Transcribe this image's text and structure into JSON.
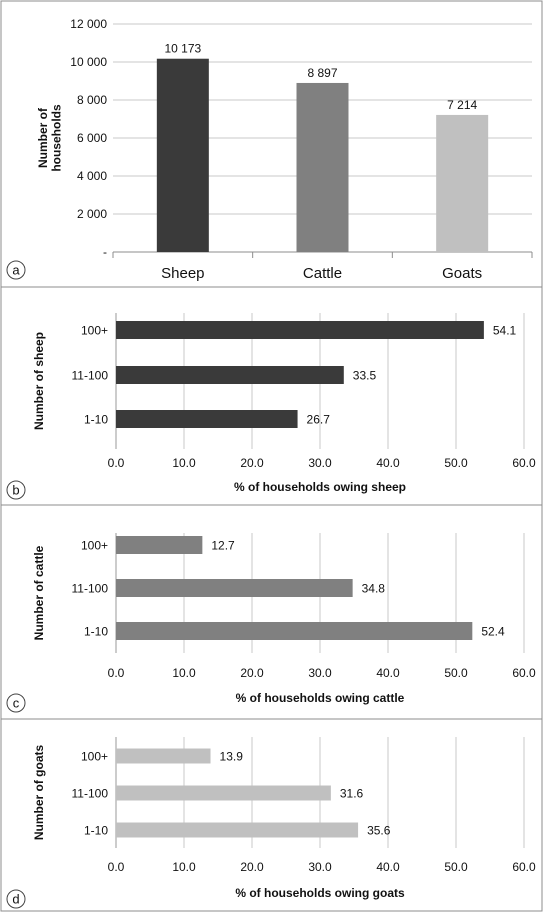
{
  "chart_data": [
    {
      "panel": "a",
      "type": "bar",
      "orientation": "vertical",
      "categories": [
        "Sheep",
        "Cattle",
        "Goats"
      ],
      "values": [
        10173,
        8897,
        7214
      ],
      "value_labels": [
        "10 173",
        "8 897",
        "7 214"
      ],
      "colors": [
        "#3a3a3a",
        "#808080",
        "#c0c0c0"
      ],
      "ylabel_lines": [
        "Number of",
        "households"
      ],
      "xlabel": "",
      "ylim": [
        0,
        12000
      ],
      "ytick_values": [
        0,
        2000,
        4000,
        6000,
        8000,
        10000,
        12000
      ],
      "ytick_labels": [
        "-",
        "2 000",
        "4 000",
        "6 000",
        "8 000",
        "10 000",
        "12 000"
      ],
      "grid": true,
      "legend": "none"
    },
    {
      "panel": "b",
      "type": "bar",
      "orientation": "horizontal",
      "categories": [
        "100+",
        "11-100",
        "1-10"
      ],
      "values": [
        54.1,
        33.5,
        26.7
      ],
      "value_labels": [
        "54.1",
        "33.5",
        "26.7"
      ],
      "color": "#3a3a3a",
      "ylabel": "Number of sheep",
      "xlabel": "% of households owing sheep",
      "xlim": [
        0,
        60
      ],
      "xtick_values": [
        0,
        10,
        20,
        30,
        40,
        50,
        60
      ],
      "xtick_labels": [
        "0.0",
        "10.0",
        "20.0",
        "30.0",
        "40.0",
        "50.0",
        "60.0"
      ],
      "grid": true,
      "legend": "none"
    },
    {
      "panel": "c",
      "type": "bar",
      "orientation": "horizontal",
      "categories": [
        "100+",
        "11-100",
        "1-10"
      ],
      "values": [
        12.7,
        34.8,
        52.4
      ],
      "value_labels": [
        "12.7",
        "34.8",
        "52.4"
      ],
      "color": "#808080",
      "ylabel": "Number of cattle",
      "xlabel": "% of households owing cattle",
      "xlim": [
        0,
        60
      ],
      "xtick_values": [
        0,
        10,
        20,
        30,
        40,
        50,
        60
      ],
      "xtick_labels": [
        "0.0",
        "10.0",
        "20.0",
        "30.0",
        "40.0",
        "50.0",
        "60.0"
      ],
      "grid": true,
      "legend": "none"
    },
    {
      "panel": "d",
      "type": "bar",
      "orientation": "horizontal",
      "categories": [
        "100+",
        "11-100",
        "1-10"
      ],
      "values": [
        13.9,
        31.6,
        35.6
      ],
      "value_labels": [
        "13.9",
        "31.6",
        "35.6"
      ],
      "color": "#c0c0c0",
      "ylabel": "Number of goats",
      "xlabel": "% of households owing goats",
      "xlim": [
        0,
        60
      ],
      "xtick_values": [
        0,
        10,
        20,
        30,
        40,
        50,
        60
      ],
      "xtick_labels": [
        "0.0",
        "10.0",
        "20.0",
        "30.0",
        "40.0",
        "50.0",
        "60.0"
      ],
      "grid": true,
      "legend": "none"
    }
  ]
}
